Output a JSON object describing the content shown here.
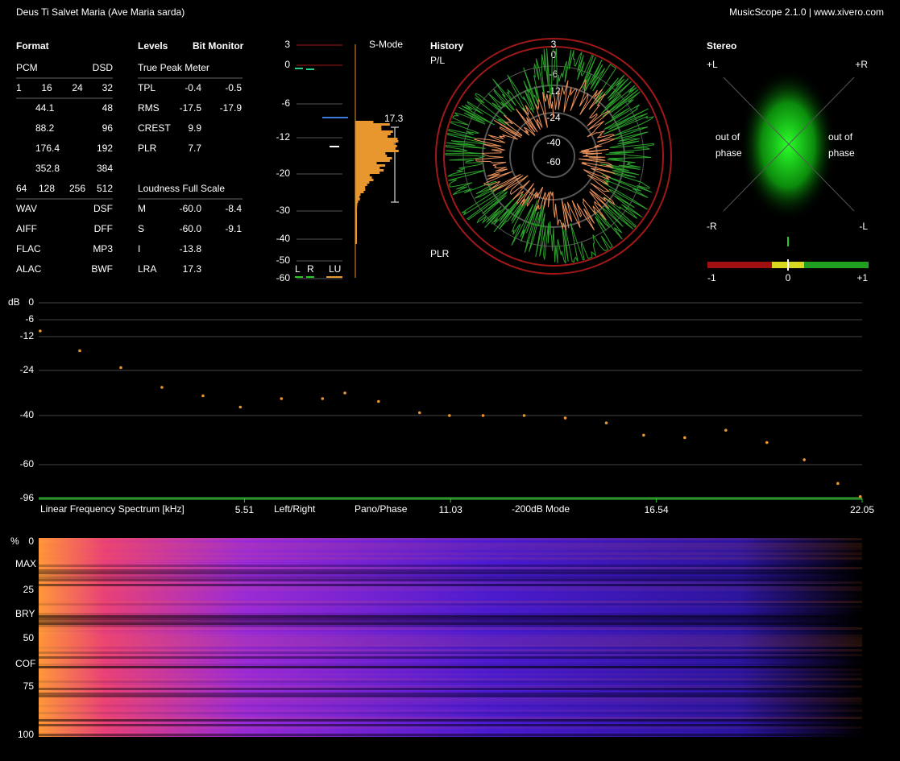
{
  "header": {
    "title": "Deus Ti Salvet Maria (Ave Maria sarda)",
    "app": "MusicScope 2.1.0 | www.xivero.com"
  },
  "format": {
    "title": "Format",
    "rows": [
      [
        "PCM",
        "DSD"
      ],
      [
        "1",
        "16",
        "24",
        "32"
      ],
      [
        "44.1",
        "48"
      ],
      [
        "88.2",
        "96"
      ],
      [
        "176.4",
        "192"
      ],
      [
        "352.8",
        "384"
      ],
      [
        "64",
        "128",
        "256",
        "512"
      ],
      [
        "WAV",
        "DSF"
      ],
      [
        "AIFF",
        "DFF"
      ],
      [
        "FLAC",
        "MP3"
      ],
      [
        "ALAC",
        "BWF"
      ]
    ]
  },
  "levels": {
    "title": "Levels",
    "bit_monitor": "Bit Monitor",
    "true_peak_title": "True Peak Meter",
    "true_peak_rows": [
      [
        "TPL",
        "-0.4",
        "-0.5"
      ],
      [
        "RMS",
        "-17.5",
        "-17.9"
      ],
      [
        "CREST",
        "9.9"
      ],
      [
        "PLR",
        "7.7"
      ]
    ],
    "loudness_title": "Loudness Full Scale",
    "loudness_rows": [
      [
        "M",
        "-60.0",
        "-8.4"
      ],
      [
        "S",
        "-60.0",
        "-9.1"
      ],
      [
        "I",
        "-13.8"
      ],
      [
        "LRA",
        "17.3"
      ]
    ]
  },
  "meter": {
    "scale": [
      "3",
      "0",
      "-6",
      "-12",
      "-20",
      "-30",
      "-40",
      "-50",
      "-60"
    ],
    "mode": "S-Mode",
    "lra": "17.3",
    "legend": [
      "L",
      "R",
      "LU"
    ]
  },
  "history": {
    "title": "History",
    "top": "P/L",
    "bottom": "PLR",
    "rings": [
      "3",
      "0",
      "-6",
      "-12",
      "-24",
      "-40",
      "-60"
    ]
  },
  "stereo": {
    "title": "Stereo",
    "corners": [
      "+L",
      "+R",
      "-R",
      "-L"
    ],
    "out_of_phase": [
      "out of",
      "phase"
    ],
    "scale": [
      "-1",
      "0",
      "+1"
    ]
  },
  "spectrum": {
    "type": "scatter",
    "y_unit": "dB",
    "label": "Linear Frequency Spectrum [kHz]",
    "buttons": [
      "Left/Right",
      "Pano/Phase",
      "-200dB Mode"
    ],
    "yticks": [
      0,
      -6,
      -12,
      -24,
      -40,
      -60,
      -96
    ],
    "xlim": [
      0,
      22.05
    ],
    "xticks": [
      5.51,
      11.03,
      16.54,
      22.05
    ],
    "color": "#e8962e",
    "x": [
      0.04,
      1.1,
      2.2,
      3.3,
      4.4,
      5.4,
      6.5,
      7.6,
      8.2,
      9.1,
      10.2,
      11.0,
      11.9,
      13.0,
      14.1,
      15.2,
      16.2,
      17.3,
      18.4,
      19.5,
      20.5,
      21.4,
      22.0
    ],
    "values": [
      -10,
      -17,
      -23,
      -30,
      -33,
      -37,
      -34,
      -34,
      -32,
      -35,
      -39,
      -40,
      -40,
      -40,
      -41,
      -43,
      -48,
      -49,
      -46,
      -51,
      -58,
      -80,
      -94
    ]
  },
  "spectrogram": {
    "unit": "%",
    "ylim": [
      0,
      100
    ],
    "yticks": [
      0,
      25,
      50,
      75,
      100
    ],
    "markers": [
      "MAX",
      "BRY",
      "COF"
    ]
  }
}
